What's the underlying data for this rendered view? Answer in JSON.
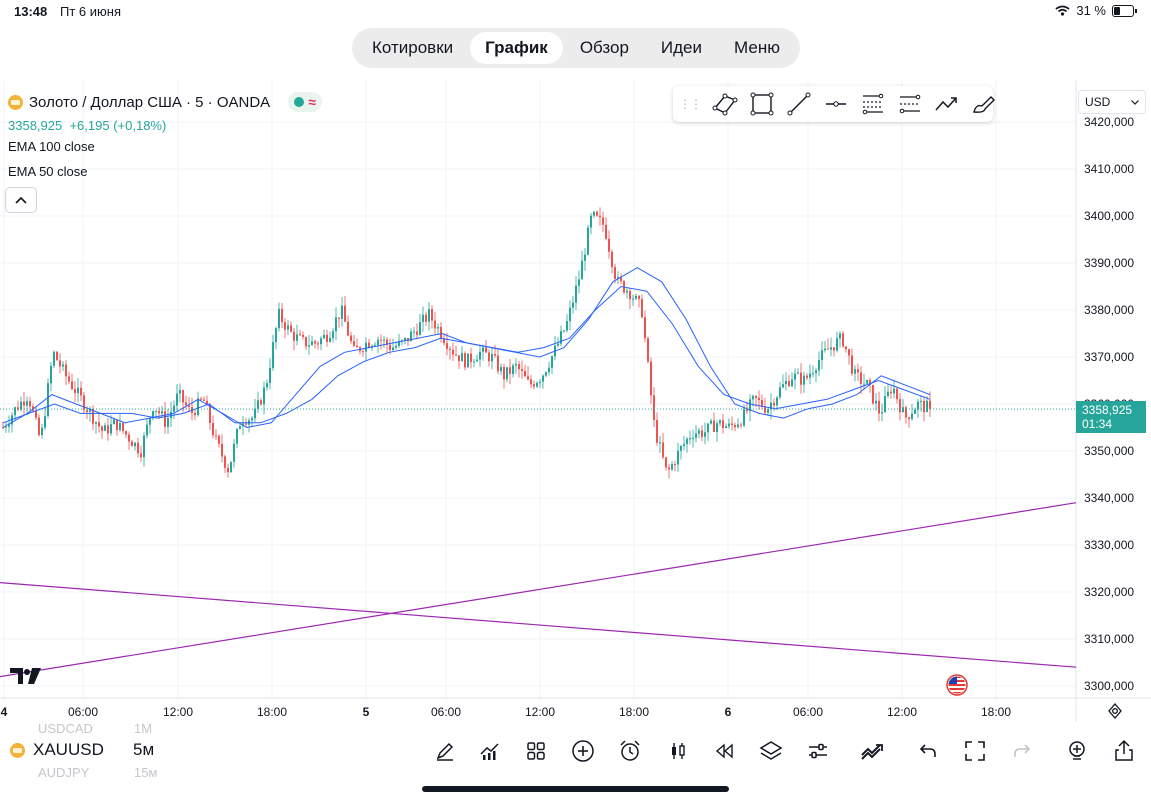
{
  "status_bar": {
    "time": "13:48",
    "date": "Пт 6 июня",
    "battery": "31 %"
  },
  "nav": {
    "tabs": [
      {
        "label": "Котировки",
        "active": false
      },
      {
        "label": "График",
        "active": true
      },
      {
        "label": "Обзор",
        "active": false
      },
      {
        "label": "Идеи",
        "active": false
      },
      {
        "label": "Меню",
        "active": false
      }
    ]
  },
  "legend": {
    "symbol_title": "Золото / Доллар США · 5 · OANDA",
    "price": "3358,925",
    "change": "+6,195 (+0,18%)",
    "indicators": [
      "EMA 100 close",
      "EMA 50 close"
    ],
    "wave_icon": "≈"
  },
  "currency": "USD",
  "drawing_toolbar": {
    "tools": [
      "pattern-tool-icon",
      "rectangle-tool-icon",
      "trend-line-icon",
      "horizontal-ray-icon",
      "fib-retracement-icon",
      "channel-icon",
      "path-icon",
      "brush-icon"
    ]
  },
  "price_badge": {
    "price": "3358,925",
    "countdown": "01:34"
  },
  "chart_data": {
    "type": "candlestick",
    "symbol": "XAUUSD",
    "y_ticks": [
      "3420,000",
      "3410,000",
      "3400,000",
      "3390,000",
      "3380,000",
      "3370,000",
      "3360,000",
      "3350,000",
      "3340,000",
      "3330,000",
      "3320,000",
      "3310,000",
      "3300,000"
    ],
    "y_tick_values": [
      3420,
      3410,
      3400,
      3390,
      3380,
      3370,
      3360,
      3350,
      3340,
      3330,
      3320,
      3310,
      3300
    ],
    "ylim": [
      3298,
      3424
    ],
    "x_ticks": [
      {
        "label": "4",
        "bold": true
      },
      {
        "label": "06:00",
        "bold": false
      },
      {
        "label": "12:00",
        "bold": false
      },
      {
        "label": "18:00",
        "bold": false
      },
      {
        "label": "5",
        "bold": true
      },
      {
        "label": "06:00",
        "bold": false
      },
      {
        "label": "12:00",
        "bold": false
      },
      {
        "label": "18:00",
        "bold": false
      },
      {
        "label": "6",
        "bold": true
      },
      {
        "label": "06:00",
        "bold": false
      },
      {
        "label": "12:00",
        "bold": false
      },
      {
        "label": "18:00",
        "bold": false
      }
    ],
    "last_price": 3358.925,
    "price_path": [
      3355,
      3359,
      3362,
      3352,
      3371,
      3366,
      3362,
      3358,
      3354,
      3356,
      3353,
      3350,
      3360,
      3356,
      3362,
      3358,
      3361,
      3352,
      3346,
      3357,
      3357,
      3364,
      3379,
      3375,
      3373,
      3373,
      3375,
      3380,
      3371,
      3373,
      3374,
      3372,
      3373,
      3376,
      3379,
      3375,
      3371,
      3369,
      3371,
      3370,
      3366,
      3368,
      3364,
      3366,
      3371,
      3377,
      3387,
      3400,
      3398,
      3386,
      3384,
      3380,
      3355,
      3345,
      3350,
      3354,
      3354,
      3356,
      3355,
      3357,
      3361,
      3359,
      3363,
      3366,
      3365,
      3369,
      3372,
      3374,
      3366,
      3364,
      3358,
      3364,
      3357,
      3360,
      3359
    ],
    "ema50": [
      3355,
      3358,
      3362,
      3360,
      3358,
      3356,
      3357,
      3358,
      3361,
      3358,
      3355,
      3356,
      3362,
      3368,
      3371,
      3372,
      3373,
      3374,
      3375,
      3373,
      3372,
      3371,
      3370,
      3372,
      3378,
      3386,
      3389,
      3386,
      3378,
      3368,
      3360,
      3358,
      3357,
      3359,
      3360,
      3362,
      3366,
      3364,
      3362
    ],
    "ema100": [
      3356,
      3358,
      3360,
      3358,
      3358,
      3358,
      3357,
      3358,
      3360,
      3356,
      3356,
      3358,
      3361,
      3366,
      3369,
      3371,
      3372,
      3374,
      3373,
      3372,
      3371,
      3372,
      3374,
      3380,
      3385,
      3384,
      3377,
      3368,
      3362,
      3360,
      3359,
      3360,
      3361,
      3363,
      3365,
      3363,
      3361
    ],
    "trend_lines": [
      {
        "color": "#9c27b0",
        "from": [
          0,
          3302
        ],
        "to": [
          1,
          3339
        ]
      },
      {
        "color": "#9c27b0",
        "from": [
          0,
          3322
        ],
        "to": [
          1,
          3304
        ]
      }
    ],
    "colors": {
      "up": "#26a69a",
      "down": "#ef5350",
      "ema": "#2962ff",
      "trend": "#9c27b0"
    }
  },
  "bottom_bar": {
    "symbol": "XAUUSD",
    "timeframe": "5м",
    "ghost_symbols": [
      "USDCAD",
      "AUDJPY"
    ],
    "ghost_timeframes": [
      "1М",
      "15м"
    ],
    "icons": [
      "pen-icon",
      "indicators-icon",
      "layouts-icon",
      "add-icon",
      "alert-icon",
      "candles-icon",
      "replay-icon",
      "layers-icon",
      "settings-sliders-icon",
      "trading-icon",
      "undo-icon",
      "fullscreen-icon",
      "redo-icon",
      "idea-icon",
      "share-icon"
    ]
  }
}
